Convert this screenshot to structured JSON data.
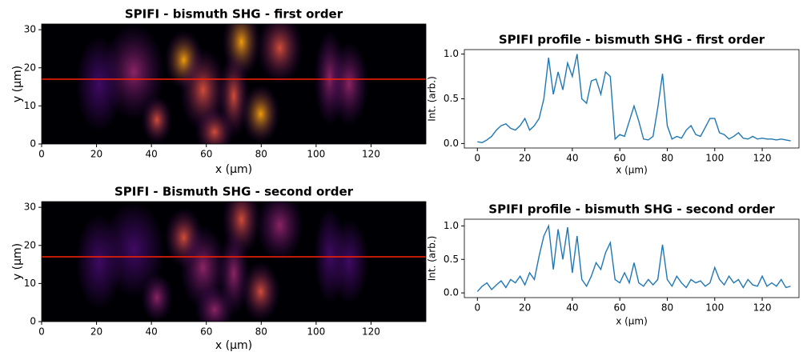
{
  "chart_data": [
    {
      "type": "heatmap",
      "title": "SPIFI - bismuth SHG - first order",
      "xlabel": "x (μm)",
      "ylabel": "y (μm)",
      "colormap": "inferno",
      "xlim": [
        0,
        140
      ],
      "ylim": [
        0,
        31.5
      ],
      "xticks": [
        0,
        20,
        40,
        60,
        80,
        100,
        120
      ],
      "yticks": [
        0,
        10,
        20,
        30
      ],
      "hline": 17,
      "hline_color": "#ff2000"
    },
    {
      "type": "line",
      "title": "SPIFI profile - bismuth SHG - first order",
      "xlabel": "x (μm)",
      "ylabel": "Int. (arb.)",
      "xlim": [
        -5.5,
        135.5
      ],
      "ylim": [
        -0.05,
        1.05
      ],
      "xticks": [
        0,
        20,
        40,
        60,
        80,
        100,
        120
      ],
      "yticks": [
        0.0,
        0.5,
        1.0
      ],
      "x": [
        0,
        2,
        4,
        6,
        8,
        10,
        12,
        14,
        16,
        18,
        20,
        22,
        24,
        26,
        28,
        30,
        32,
        34,
        36,
        38,
        40,
        42,
        44,
        46,
        48,
        50,
        52,
        54,
        56,
        58,
        60,
        62,
        64,
        66,
        68,
        70,
        72,
        74,
        76,
        78,
        80,
        82,
        84,
        86,
        88,
        90,
        92,
        94,
        96,
        98,
        100,
        102,
        104,
        106,
        108,
        110,
        112,
        114,
        116,
        118,
        120,
        122,
        124,
        126,
        128,
        130,
        132
      ],
      "series": [
        {
          "color": "#1f77b4",
          "values": [
            0.02,
            0.01,
            0.04,
            0.08,
            0.15,
            0.2,
            0.22,
            0.17,
            0.15,
            0.2,
            0.28,
            0.15,
            0.2,
            0.28,
            0.5,
            0.96,
            0.55,
            0.8,
            0.6,
            0.9,
            0.75,
            1.0,
            0.5,
            0.45,
            0.7,
            0.72,
            0.55,
            0.8,
            0.75,
            0.05,
            0.1,
            0.08,
            0.25,
            0.42,
            0.25,
            0.05,
            0.04,
            0.08,
            0.4,
            0.78,
            0.2,
            0.05,
            0.08,
            0.06,
            0.15,
            0.2,
            0.1,
            0.08,
            0.18,
            0.28,
            0.28,
            0.12,
            0.1,
            0.05,
            0.08,
            0.12,
            0.06,
            0.05,
            0.08,
            0.05,
            0.06,
            0.05,
            0.05,
            0.04,
            0.05,
            0.04,
            0.03
          ]
        }
      ]
    },
    {
      "type": "heatmap",
      "title": "SPIFI - Bismuth SHG - second order",
      "xlabel": "x (μm)",
      "ylabel": "y (μm)",
      "colormap": "inferno",
      "xlim": [
        0,
        140
      ],
      "ylim": [
        0,
        31.5
      ],
      "xticks": [
        0,
        20,
        40,
        60,
        80,
        100,
        120
      ],
      "yticks": [
        0,
        10,
        20,
        30
      ],
      "hline": 17,
      "hline_color": "#ff2000"
    },
    {
      "type": "line",
      "title": "SPIFI profile - bismuth SHG - second order",
      "xlabel": "x (μm)",
      "ylabel": "Int. (arb.)",
      "xlim": [
        -5.5,
        135.5
      ],
      "ylim": [
        -0.07,
        1.1
      ],
      "xticks": [
        0,
        20,
        40,
        60,
        80,
        100,
        120
      ],
      "yticks": [
        0.0,
        0.5,
        1.0
      ],
      "x": [
        0,
        2,
        4,
        6,
        8,
        10,
        12,
        14,
        16,
        18,
        20,
        22,
        24,
        26,
        28,
        30,
        32,
        34,
        36,
        38,
        40,
        42,
        44,
        46,
        48,
        50,
        52,
        54,
        56,
        58,
        60,
        62,
        64,
        66,
        68,
        70,
        72,
        74,
        76,
        78,
        80,
        82,
        84,
        86,
        88,
        90,
        92,
        94,
        96,
        98,
        100,
        102,
        104,
        106,
        108,
        110,
        112,
        114,
        116,
        118,
        120,
        122,
        124,
        126,
        128,
        130,
        132
      ],
      "series": [
        {
          "color": "#1f77b4",
          "values": [
            0.02,
            0.1,
            0.15,
            0.05,
            0.12,
            0.18,
            0.08,
            0.2,
            0.15,
            0.25,
            0.12,
            0.3,
            0.2,
            0.55,
            0.85,
            1.0,
            0.35,
            0.95,
            0.5,
            0.98,
            0.3,
            0.85,
            0.2,
            0.1,
            0.25,
            0.45,
            0.35,
            0.6,
            0.75,
            0.2,
            0.15,
            0.3,
            0.15,
            0.45,
            0.15,
            0.1,
            0.2,
            0.12,
            0.2,
            0.72,
            0.2,
            0.1,
            0.25,
            0.15,
            0.08,
            0.2,
            0.15,
            0.18,
            0.1,
            0.15,
            0.38,
            0.2,
            0.12,
            0.25,
            0.15,
            0.2,
            0.08,
            0.2,
            0.12,
            0.1,
            0.25,
            0.1,
            0.15,
            0.1,
            0.2,
            0.08,
            0.1
          ]
        }
      ]
    }
  ]
}
